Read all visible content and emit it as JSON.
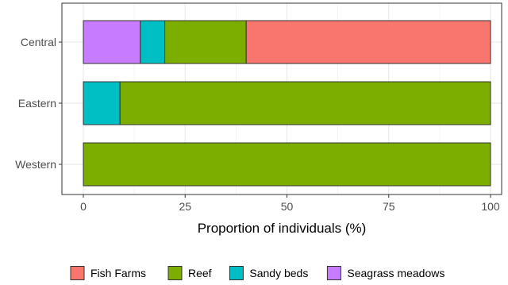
{
  "chart_data": {
    "type": "bar",
    "orientation": "horizontal",
    "stacked": true,
    "categories": [
      "Central",
      "Eastern",
      "Western"
    ],
    "series": [
      {
        "name": "Seagrass meadows",
        "color": "#C77CFF",
        "values": [
          14,
          0,
          0
        ]
      },
      {
        "name": "Sandy beds",
        "color": "#00BFC4",
        "values": [
          6,
          9,
          0
        ]
      },
      {
        "name": "Reef",
        "color": "#7CAE00",
        "values": [
          20,
          91,
          100
        ]
      },
      {
        "name": "Fish Farms",
        "color": "#F8766D",
        "values": [
          60,
          0,
          0
        ]
      }
    ],
    "xlabel": "Proportion of individuals (%)",
    "ylabel": "",
    "xlim": [
      0,
      100
    ],
    "xticks": [
      0,
      25,
      50,
      75,
      100
    ],
    "grid": true,
    "legend_position": "bottom",
    "legend_order": [
      "Fish Farms",
      "Reef",
      "Sandy beds",
      "Seagrass meadows"
    ]
  }
}
